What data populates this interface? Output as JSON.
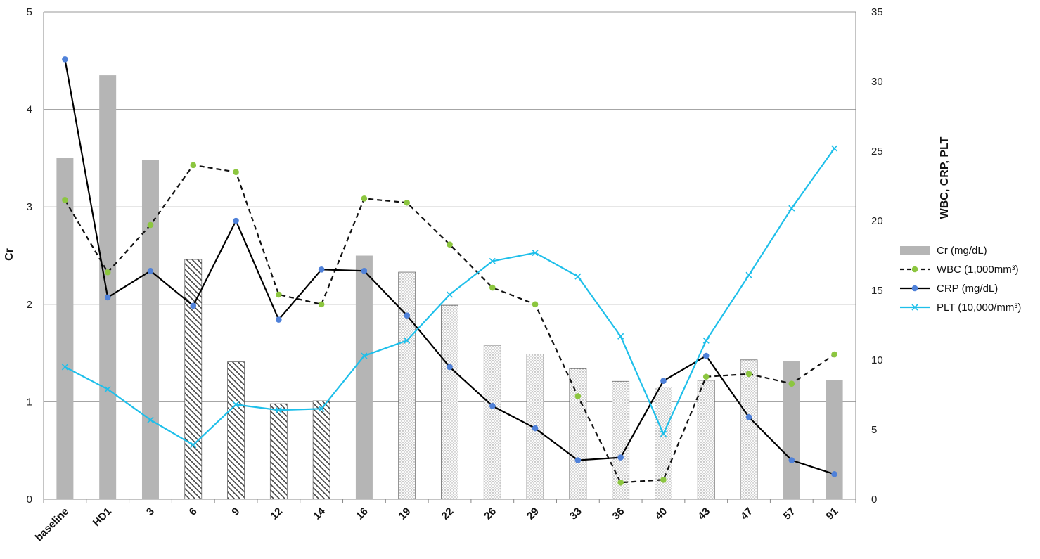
{
  "chart_data": {
    "type": "bar+line",
    "title": "",
    "categories": [
      "baseline",
      "HD1",
      "3",
      "6",
      "9",
      "12",
      "14",
      "16",
      "19",
      "22",
      "26",
      "29",
      "33",
      "36",
      "40",
      "43",
      "47",
      "57",
      "91"
    ],
    "left_axis": {
      "label": "Cr",
      "range": [
        0,
        5
      ],
      "ticks": [
        "0",
        "1",
        "2",
        "3",
        "4",
        "5"
      ]
    },
    "right_axis": {
      "label": "WBC, CRP, PLT",
      "range": [
        0,
        35
      ],
      "ticks": [
        "0",
        "5",
        "10",
        "15",
        "20",
        "25",
        "30",
        "35"
      ]
    },
    "bar_series": {
      "name": "Cr (mg/dL)",
      "axis": "left",
      "values": [
        3.5,
        4.35,
        3.48,
        2.46,
        1.41,
        0.98,
        1.01,
        2.5,
        2.33,
        1.99,
        1.58,
        1.49,
        1.34,
        1.21,
        1.15,
        1.22,
        1.43,
        1.42,
        1.22
      ],
      "fill_patterns": [
        "solid",
        "solid",
        "solid",
        "hatch",
        "hatch",
        "hatch",
        "hatch",
        "solid",
        "dots",
        "dots",
        "dots",
        "dots",
        "dots",
        "dots",
        "dots",
        "dots",
        "dots",
        "solid",
        "solid"
      ]
    },
    "line_series": [
      {
        "name": "WBC (1,000mm³)",
        "axis": "right",
        "color": "#111111",
        "marker_color": "#8cc63f",
        "dash": true,
        "values": [
          21.5,
          16.3,
          19.7,
          24.0,
          23.5,
          14.7,
          14.0,
          21.6,
          21.3,
          18.3,
          15.2,
          14.0,
          7.4,
          1.2,
          1.4,
          8.8,
          9.0,
          8.3,
          10.4
        ]
      },
      {
        "name": "CRP (mg/dL)",
        "axis": "right",
        "color": "#000000",
        "marker_color": "#4f81d9",
        "dash": false,
        "values": [
          31.6,
          14.5,
          16.4,
          13.9,
          20.0,
          12.9,
          16.5,
          16.4,
          13.2,
          9.5,
          6.7,
          5.1,
          2.8,
          3.0,
          8.5,
          10.3,
          5.9,
          2.8,
          1.8
        ]
      },
      {
        "name": "PLT (10,000/mm³)",
        "axis": "right",
        "color": "#1ebfea",
        "marker": "x",
        "dash": false,
        "values": [
          9.5,
          7.9,
          5.7,
          3.9,
          6.8,
          6.4,
          6.5,
          10.3,
          11.4,
          14.7,
          17.1,
          17.7,
          16.0,
          11.7,
          4.7,
          11.4,
          16.1,
          20.9,
          25.2
        ]
      }
    ],
    "grid": true,
    "legend_placement": "right"
  }
}
